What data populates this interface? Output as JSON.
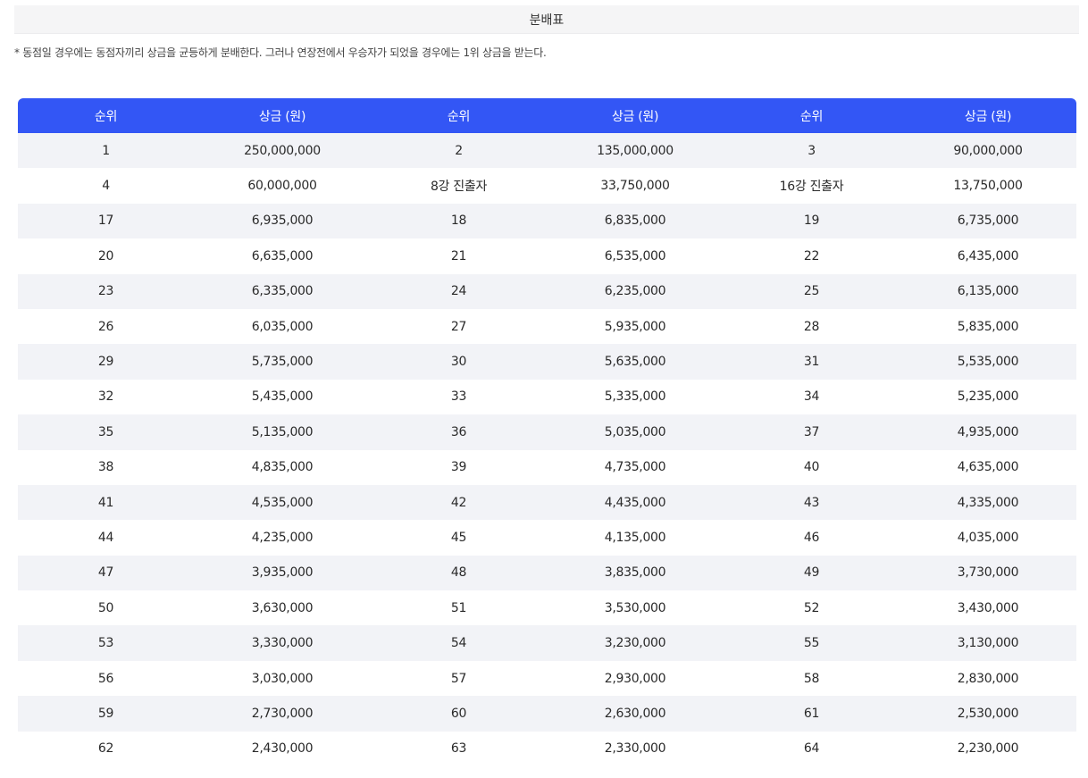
{
  "title": "분배표",
  "note": "* 동점일 경우에는 동점자끼리 상금을 균등하게 분배한다. 그러나 연장전에서 우승자가 되었을 경우에는 1위 상금을 받는다.",
  "colors": {
    "header_bg": "#3356f5",
    "header_text": "#ffffff",
    "stripe_bg": "#f2f3f7",
    "title_bg": "#f5f5f6"
  },
  "table": {
    "headers": [
      "순위",
      "상금 (원)",
      "순위",
      "상금 (원)",
      "순위",
      "상금 (원)"
    ],
    "rows": [
      [
        "1",
        "250,000,000",
        "2",
        "135,000,000",
        "3",
        "90,000,000"
      ],
      [
        "4",
        "60,000,000",
        "8강 진출자",
        "33,750,000",
        "16강 진출자",
        "13,750,000"
      ],
      [
        "17",
        "6,935,000",
        "18",
        "6,835,000",
        "19",
        "6,735,000"
      ],
      [
        "20",
        "6,635,000",
        "21",
        "6,535,000",
        "22",
        "6,435,000"
      ],
      [
        "23",
        "6,335,000",
        "24",
        "6,235,000",
        "25",
        "6,135,000"
      ],
      [
        "26",
        "6,035,000",
        "27",
        "5,935,000",
        "28",
        "5,835,000"
      ],
      [
        "29",
        "5,735,000",
        "30",
        "5,635,000",
        "31",
        "5,535,000"
      ],
      [
        "32",
        "5,435,000",
        "33",
        "5,335,000",
        "34",
        "5,235,000"
      ],
      [
        "35",
        "5,135,000",
        "36",
        "5,035,000",
        "37",
        "4,935,000"
      ],
      [
        "38",
        "4,835,000",
        "39",
        "4,735,000",
        "40",
        "4,635,000"
      ],
      [
        "41",
        "4,535,000",
        "42",
        "4,435,000",
        "43",
        "4,335,000"
      ],
      [
        "44",
        "4,235,000",
        "45",
        "4,135,000",
        "46",
        "4,035,000"
      ],
      [
        "47",
        "3,935,000",
        "48",
        "3,835,000",
        "49",
        "3,730,000"
      ],
      [
        "50",
        "3,630,000",
        "51",
        "3,530,000",
        "52",
        "3,430,000"
      ],
      [
        "53",
        "3,330,000",
        "54",
        "3,230,000",
        "55",
        "3,130,000"
      ],
      [
        "56",
        "3,030,000",
        "57",
        "2,930,000",
        "58",
        "2,830,000"
      ],
      [
        "59",
        "2,730,000",
        "60",
        "2,630,000",
        "61",
        "2,530,000"
      ],
      [
        "62",
        "2,430,000",
        "63",
        "2,330,000",
        "64",
        "2,230,000"
      ]
    ]
  }
}
